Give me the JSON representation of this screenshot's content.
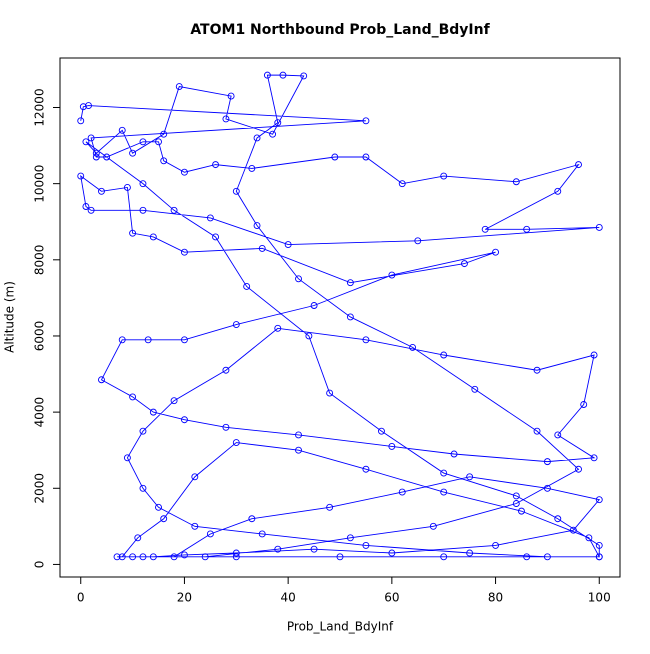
{
  "chart_data": {
    "type": "line",
    "title": "ATOM1 Northbound Prob_Land_BdyInf",
    "x_label": "Prob_Land_BdyInf",
    "y_label": "Altitude (m)",
    "color": "#0000ff",
    "x": [
      0,
      0.5,
      1.5,
      55,
      2,
      3,
      5,
      12,
      15,
      16,
      20,
      26,
      33,
      49,
      55,
      62,
      70,
      84,
      96,
      92,
      78,
      86,
      100,
      65,
      40,
      25,
      12,
      2,
      1,
      0,
      4,
      9,
      10,
      14,
      20,
      35,
      52,
      74,
      80,
      60,
      45,
      30,
      20,
      13,
      8,
      4,
      10,
      14,
      20,
      28,
      42,
      60,
      72,
      90,
      99,
      92,
      97,
      99,
      88,
      70,
      55,
      38,
      28,
      18,
      12,
      9,
      12,
      15,
      22,
      35,
      55,
      75,
      90,
      100,
      98,
      85,
      70,
      55,
      42,
      30,
      22,
      16,
      11,
      8,
      10,
      14,
      20,
      30,
      45,
      60,
      80,
      95,
      100,
      90,
      75,
      62,
      48,
      33,
      25,
      18,
      24,
      38,
      52,
      68,
      84,
      96,
      88,
      76,
      64,
      52,
      42,
      34,
      30,
      34,
      38,
      36,
      39,
      43,
      37,
      28,
      29,
      19,
      16,
      10,
      8,
      3,
      1,
      12,
      18,
      26,
      32,
      44,
      48,
      58,
      70,
      84,
      92,
      100,
      100,
      86,
      70,
      50,
      30,
      12,
      7
    ],
    "values": [
      11650,
      12020,
      12050,
      11650,
      11200,
      10700,
      10700,
      11100,
      11100,
      10600,
      10300,
      10500,
      10400,
      10700,
      10700,
      10000,
      10200,
      10050,
      10500,
      9800,
      8800,
      8800,
      8850,
      8500,
      8400,
      9100,
      9300,
      9300,
      9400,
      10200,
      9800,
      9900,
      8700,
      8600,
      8200,
      8300,
      7400,
      7900,
      8200,
      7600,
      6800,
      6300,
      5900,
      5900,
      5900,
      4850,
      4400,
      4000,
      3800,
      3600,
      3400,
      3100,
      2900,
      2700,
      2800,
      3400,
      4200,
      5500,
      5100,
      5500,
      5900,
      6200,
      5100,
      4300,
      3500,
      2800,
      2000,
      1500,
      1000,
      800,
      500,
      300,
      200,
      200,
      700,
      1400,
      1900,
      2500,
      3000,
      3200,
      2300,
      1200,
      700,
      200,
      200,
      200,
      250,
      300,
      400,
      300,
      500,
      900,
      1700,
      2000,
      2300,
      1900,
      1500,
      1200,
      800,
      200,
      200,
      400,
      700,
      1000,
      1600,
      2500,
      3500,
      4600,
      5700,
      6500,
      7500,
      8900,
      9800,
      11200,
      11600,
      12850,
      12850,
      12830,
      11300,
      11700,
      12300,
      12550,
      11300,
      10800,
      11400,
      10800,
      11100,
      10000,
      9300,
      8600,
      7300,
      6000,
      4500,
      3500,
      2400,
      1800,
      1200,
      500,
      200,
      200,
      200,
      200,
      200,
      200,
      200
    ],
    "xlim": [
      -4,
      104
    ],
    "ylim": [
      -330,
      13300
    ],
    "xticks": [
      0,
      20,
      40,
      60,
      80,
      100
    ],
    "yticks": [
      0,
      2000,
      4000,
      6000,
      8000,
      10000,
      12000
    ]
  }
}
